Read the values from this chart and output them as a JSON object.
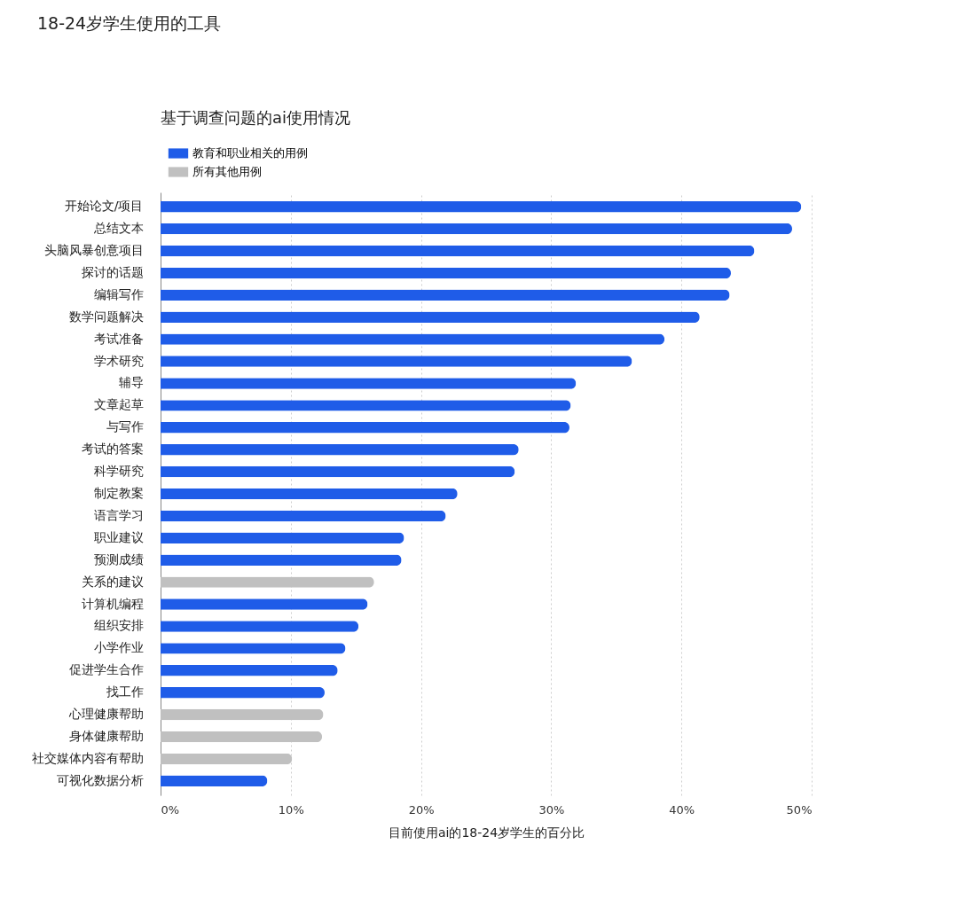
{
  "chart_data": {
    "type": "bar",
    "orientation": "horizontal",
    "stacked": true,
    "title": "18-24岁学生使用的工具",
    "subtitle": "基于调查问题的ai使用情况",
    "xlabel": "目前使用ai的18-24岁学生的百分比",
    "categories": [
      "开始论文/项目",
      "总结文本",
      "头脑风暴创意项目",
      "探讨的话题",
      "编辑写作",
      "数学问题解决",
      "考试准备",
      "学术研究",
      "辅导",
      "文章起草",
      "与写作",
      "考试的答案",
      "科学研究",
      "制定教案",
      "语言学习",
      "职业建议",
      "预测成绩",
      "关系的建议",
      "计算机编程",
      "组织安排",
      "小学作业",
      "促进学生合作",
      "找工作",
      "心理健康帮助",
      "身体健康帮助",
      "社交媒体内容有帮助",
      "可视化数据分析"
    ],
    "series": [
      {
        "name": "教育和职业相关的用例",
        "color": "#1f5ce8",
        "values": [
          49.2,
          48.5,
          45.6,
          43.8,
          43.7,
          41.4,
          38.7,
          36.2,
          31.9,
          31.5,
          31.4,
          27.5,
          27.2,
          22.8,
          21.9,
          18.7,
          18.5,
          null,
          15.9,
          15.2,
          14.2,
          13.6,
          12.6,
          null,
          null,
          null,
          8.2
        ]
      },
      {
        "name": "所有其他用例",
        "color": "#c0c0c0",
        "values": [
          null,
          null,
          null,
          null,
          null,
          null,
          null,
          null,
          null,
          null,
          null,
          null,
          null,
          null,
          null,
          null,
          null,
          16.4,
          null,
          null,
          null,
          null,
          null,
          12.5,
          12.4,
          10.1,
          null
        ]
      }
    ],
    "xlim": [
      0,
      50
    ],
    "xticks": [
      {
        "value": 0,
        "label": "0%"
      },
      {
        "value": 10,
        "label": "10%"
      },
      {
        "value": 20,
        "label": "20%"
      },
      {
        "value": 30,
        "label": "30%"
      },
      {
        "value": 40,
        "label": "40%"
      },
      {
        "value": 50,
        "label": "50%"
      }
    ],
    "grid": "x",
    "legend": "top left"
  }
}
